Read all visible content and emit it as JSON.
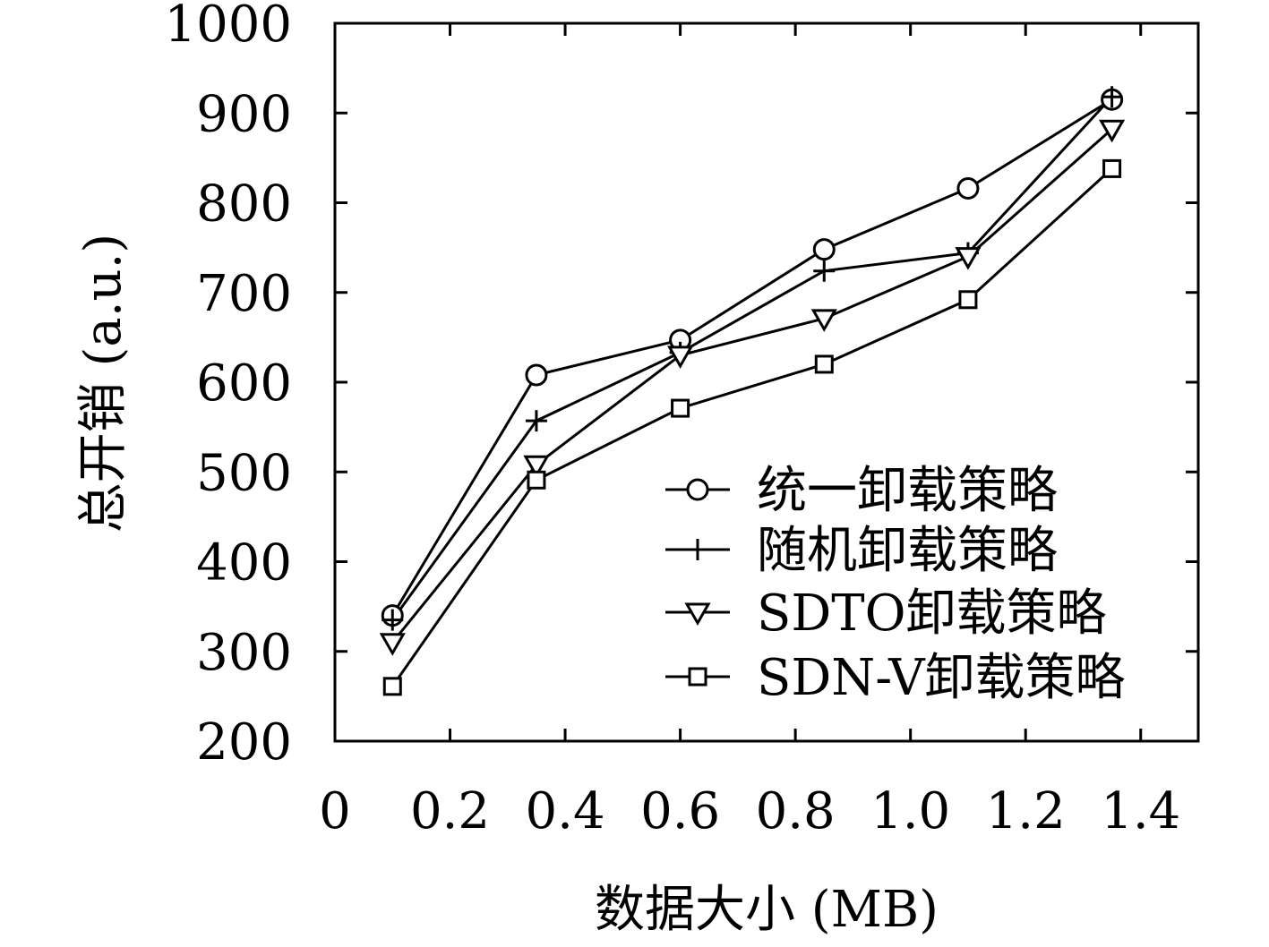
{
  "chart_data": {
    "type": "line",
    "xlabel": "数据大小 (MB)",
    "ylabel": "总开销 (a.u.)",
    "xlim": [
      0,
      1.5
    ],
    "ylim": [
      200,
      1000
    ],
    "x_ticks": [
      "0",
      "0.2",
      "0.4",
      "0.6",
      "0.8",
      "1.0",
      "1.2",
      "1.4"
    ],
    "y_ticks": [
      "200",
      "300",
      "400",
      "500",
      "600",
      "700",
      "800",
      "900",
      "1000"
    ],
    "x": [
      0.1,
      0.35,
      0.6,
      0.85,
      1.1,
      1.35
    ],
    "legend_position": "bottom-right",
    "series": [
      {
        "name": "统一卸载策略",
        "marker": "circle",
        "values": [
          340,
          608,
          647,
          748,
          816,
          915
        ]
      },
      {
        "name": "随机卸载策略",
        "marker": "plus",
        "values": [
          335,
          557,
          633,
          724,
          744,
          918
        ]
      },
      {
        "name": "SDTO卸载策略",
        "marker": "triangle-down",
        "values": [
          310,
          508,
          630,
          671,
          740,
          882
        ]
      },
      {
        "name": "SDN-V卸载策略",
        "marker": "square",
        "values": [
          261,
          491,
          571,
          620,
          692,
          838
        ]
      }
    ]
  }
}
